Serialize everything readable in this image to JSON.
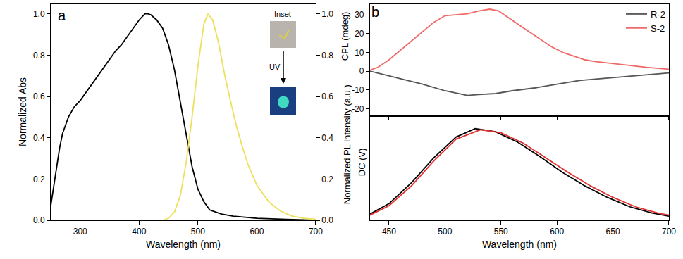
{
  "chart_data": [
    {
      "type": "line",
      "title": "a",
      "x_label": "Wavelength (nm)",
      "y_label": "Normalized Abs",
      "y2_label": "Normalized PL intensity (a.u.)",
      "annotations": [
        "Inset",
        "UV"
      ],
      "xlim": [
        250,
        700
      ],
      "xticks": [
        300,
        400,
        500,
        600,
        700
      ],
      "ylim": [
        0,
        1.05
      ],
      "yticks": [
        {
          "value": 0,
          "label": "0.0"
        },
        {
          "value": 0.2,
          "label": "0.2"
        },
        {
          "value": 0.4,
          "label": "0.4"
        },
        {
          "value": 0.6,
          "label": "0.6"
        },
        {
          "value": 0.8,
          "label": "0.8"
        },
        {
          "value": 1,
          "label": "1.0"
        }
      ],
      "y2lim": [
        0,
        1.05
      ],
      "y2ticks": [
        {
          "value": 0,
          "label": "0.0"
        },
        {
          "value": 0.2,
          "label": "0.2"
        },
        {
          "value": 0.4,
          "label": "0.4"
        },
        {
          "value": 0.6,
          "label": "0.6"
        },
        {
          "value": 0.8,
          "label": "0.8"
        },
        {
          "value": 1,
          "label": "1.0"
        }
      ],
      "series": [
        {
          "color": "#000000",
          "x": [
            250,
            255,
            260,
            265,
            270,
            280,
            290,
            300,
            310,
            320,
            330,
            340,
            350,
            360,
            370,
            380,
            385,
            390,
            400,
            410,
            415,
            420,
            430,
            440,
            450,
            460,
            470,
            480,
            490,
            500,
            510,
            520,
            540,
            560,
            600,
            650,
            700
          ],
          "values": [
            0.07,
            0.16,
            0.26,
            0.35,
            0.42,
            0.5,
            0.55,
            0.58,
            0.62,
            0.66,
            0.7,
            0.74,
            0.78,
            0.82,
            0.85,
            0.89,
            0.91,
            0.93,
            0.97,
            1.0,
            1.0,
            0.995,
            0.97,
            0.93,
            0.85,
            0.73,
            0.57,
            0.41,
            0.26,
            0.15,
            0.09,
            0.05,
            0.03,
            0.02,
            0.01,
            0.005,
            0.0
          ]
        },
        {
          "color": "#ede05a",
          "axis": "y2",
          "x": [
            440,
            450,
            460,
            470,
            480,
            490,
            500,
            510,
            517,
            525,
            535,
            545,
            555,
            565,
            575,
            585,
            600,
            620,
            640,
            660,
            680,
            700
          ],
          "values": [
            0.0,
            0.01,
            0.04,
            0.12,
            0.28,
            0.5,
            0.75,
            0.95,
            1.0,
            0.97,
            0.86,
            0.71,
            0.58,
            0.46,
            0.36,
            0.27,
            0.17,
            0.09,
            0.045,
            0.02,
            0.01,
            0.005
          ]
        }
      ]
    },
    {
      "type": "line",
      "title": "b",
      "y_label": "CPL (mdeg)",
      "xlim": [
        433,
        700
      ],
      "xticks": [
        450,
        500,
        550,
        600,
        650,
        700
      ],
      "ylim": [
        -24,
        36
      ],
      "yticks": [
        -20,
        -10,
        0,
        10,
        20,
        30
      ],
      "tick_labels": "y",
      "legend": "top right",
      "series": [
        {
          "name": "R-2",
          "color": "#555555",
          "x": [
            433,
            440,
            460,
            480,
            500,
            520,
            530,
            545,
            560,
            580,
            600,
            620,
            640,
            660,
            680,
            700
          ],
          "values": [
            0,
            -1,
            -4,
            -7,
            -10.5,
            -13,
            -12.5,
            -12,
            -10.5,
            -9,
            -7,
            -5,
            -4,
            -3,
            -2,
            -1
          ]
        },
        {
          "name": "S-2",
          "color": "#f06a6a",
          "x": [
            433,
            440,
            450,
            460,
            470,
            480,
            490,
            500,
            510,
            520,
            530,
            540,
            548,
            555,
            565,
            575,
            585,
            595,
            605,
            615,
            625,
            635,
            650,
            665,
            680,
            700
          ],
          "values": [
            0.5,
            2,
            6,
            11,
            16,
            21,
            26,
            29.5,
            30,
            30.5,
            32,
            33,
            32,
            29,
            25,
            21,
            17,
            13,
            10,
            8,
            6,
            5,
            4,
            3,
            2,
            1
          ]
        }
      ]
    },
    {
      "type": "line",
      "x_label": "Wavelength (nm)",
      "y_label": "DC (V)",
      "xlim": [
        433,
        700
      ],
      "xticks": [
        450,
        500,
        550,
        600,
        650,
        700
      ],
      "ylim": [
        0,
        1
      ],
      "yticks": [],
      "tick_labels": "x",
      "series": [
        {
          "color": "#000000",
          "x": [
            433,
            450,
            470,
            490,
            510,
            527,
            545,
            565,
            585,
            605,
            625,
            645,
            665,
            685,
            700
          ],
          "values": [
            0.06,
            0.16,
            0.36,
            0.6,
            0.8,
            0.88,
            0.85,
            0.75,
            0.61,
            0.46,
            0.33,
            0.22,
            0.13,
            0.07,
            0.04
          ]
        },
        {
          "color": "#e03030",
          "x": [
            433,
            450,
            470,
            490,
            510,
            532,
            550,
            570,
            590,
            610,
            630,
            650,
            670,
            690,
            700
          ],
          "values": [
            0.05,
            0.14,
            0.33,
            0.57,
            0.78,
            0.87,
            0.84,
            0.74,
            0.6,
            0.46,
            0.33,
            0.22,
            0.13,
            0.07,
            0.05
          ]
        }
      ]
    }
  ]
}
